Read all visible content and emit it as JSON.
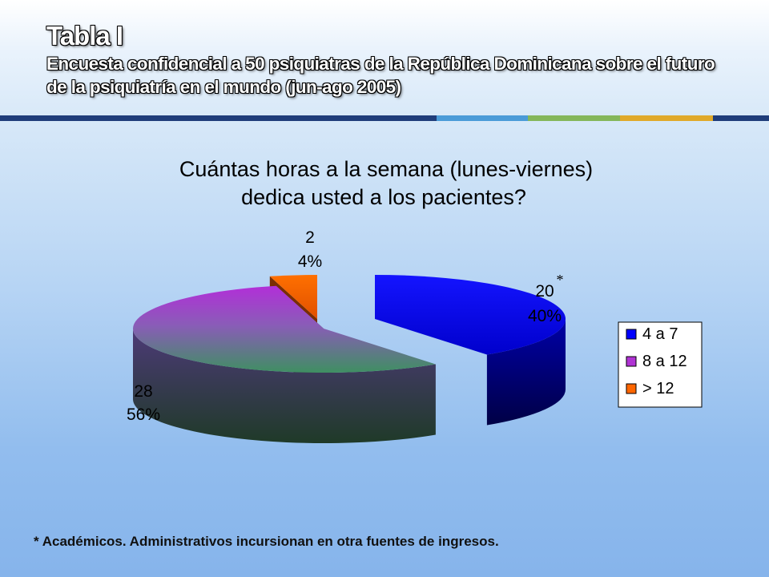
{
  "header": {
    "title": "Tabla I",
    "subtitle": "Encuesta confidencial a 50 psiquiatras de la República Dominicana sobre el futuro de la psiquiatría en el mundo (jun-ago 2005)"
  },
  "chart_data": {
    "type": "pie",
    "style": "3d-exploded",
    "title_lines": [
      "Cuántas horas a la semana (lunes-viernes)",
      "dedica usted a los pacientes?"
    ],
    "total": 50,
    "slices": [
      {
        "label": "4 a 7",
        "value": 20,
        "percent": "40%",
        "annotation": "*",
        "top_color": "#0000ff",
        "side_color": "#00007a"
      },
      {
        "label": "8 a 12",
        "value": 28,
        "percent": "56%",
        "top_color": "#b033d4",
        "bottom_color": "#3a8a5c",
        "side_color": "#324f36"
      },
      {
        "label": "> 12",
        "value": 2,
        "percent": "4%",
        "top_color": "#ff6600",
        "side_color": "#8a3300"
      }
    ],
    "legend_position": "right"
  },
  "footnote": "* Académicos. Administrativos incursionan en otra fuentes de ingresos."
}
